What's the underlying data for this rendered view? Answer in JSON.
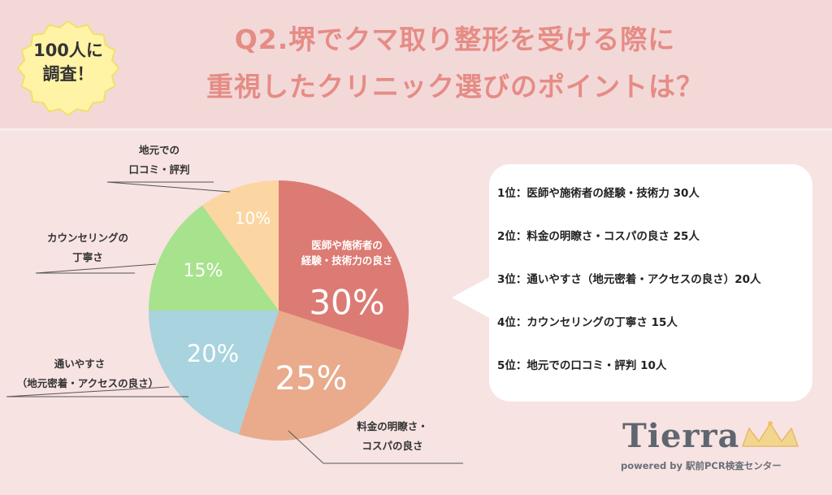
{
  "badge": {
    "line1": "100人に",
    "line2": "調査！"
  },
  "title": {
    "line1": "Q2.堺でクマ取り整形を受ける際に",
    "line2": "重視したクリニック選びのポイントは？"
  },
  "chart_data": {
    "type": "pie",
    "slices": [
      {
        "pct_label": "30%",
        "value": 30,
        "color": "#dc7b74",
        "outer_label": [
          "医師や施術者の",
          "経験・技術力の良さ"
        ]
      },
      {
        "pct_label": "25%",
        "value": 25,
        "color": "#e9ab8c",
        "outer_label": [
          "料金の明瞭さ・",
          "コスパの良さ"
        ]
      },
      {
        "pct_label": "20%",
        "value": 20,
        "color": "#a8d3df",
        "outer_label": [
          "通いやすさ",
          "（地元密着・アクセスの良さ）"
        ]
      },
      {
        "pct_label": "15%",
        "value": 15,
        "color": "#a7e28d",
        "outer_label": [
          "カウンセリングの",
          "丁寧さ"
        ]
      },
      {
        "pct_label": "10%",
        "value": 10,
        "color": "#fbd6a2",
        "outer_label": [
          "地元での",
          "口コミ・評判"
        ]
      }
    ]
  },
  "ranking": [
    "1位：医師や施術者の経験・技術力 30人",
    "2位：料金の明瞭さ・コスパの良さ 25人",
    "3位：通いやすさ（地元密着・アクセスの良さ）20人",
    "4位：カウンセリングの丁寧さ 15人",
    "5位：地元での口コミ・評判 10人"
  ],
  "logo": {
    "word": "Tierra",
    "sub": "powered by 駅前PCR検査センター"
  }
}
